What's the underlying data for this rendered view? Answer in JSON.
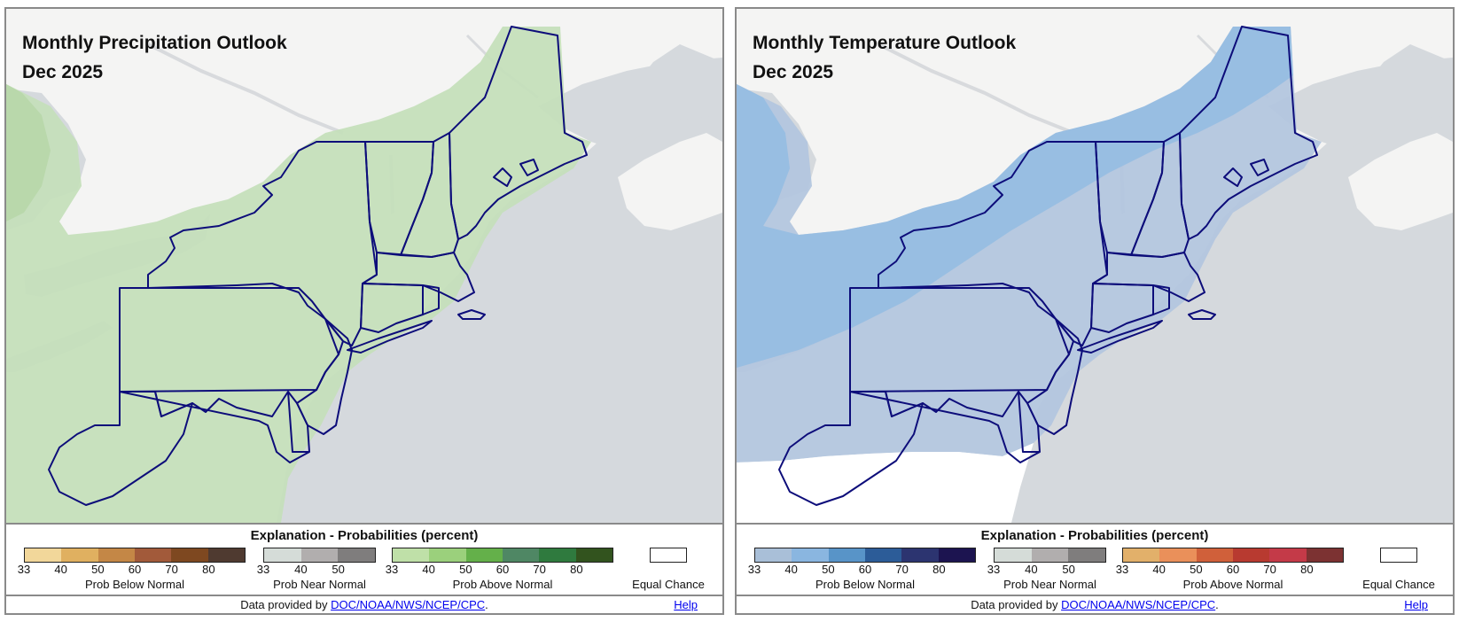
{
  "precip": {
    "title": "Monthly Precipitation Outlook",
    "period": "Dec 2025",
    "legend_title": "Explanation - Probabilities (percent)",
    "below": {
      "label": "Prob Below Normal",
      "ticks": [
        "33",
        "40",
        "50",
        "60",
        "70",
        "80"
      ],
      "colors": [
        "#f2d79a",
        "#e0b060",
        "#c48746",
        "#a25a3a",
        "#7e4820",
        "#4f3a30"
      ]
    },
    "near": {
      "label": "Prob Near Normal",
      "ticks": [
        "33",
        "40",
        "50"
      ],
      "colors": [
        "#d5dcd8",
        "#b1aeae",
        "#7f7d7d"
      ]
    },
    "above": {
      "label": "Prob Above Normal",
      "ticks": [
        "33",
        "40",
        "50",
        "60",
        "70",
        "80"
      ],
      "colors": [
        "#bfe0a8",
        "#9bd07c",
        "#64b04a",
        "#4f8764",
        "#2f7a3e",
        "#32531e"
      ]
    },
    "equal_chance": "Equal Chance",
    "credit_prefix": "Data provided by ",
    "credit_link": "DOC/NOAA/NWS/NCEP/CPC",
    "credit_suffix": ".",
    "help": "Help",
    "shade_color": "#c5dfba"
  },
  "temp": {
    "title": "Monthly Temperature Outlook",
    "period": "Dec 2025",
    "legend_title": "Explanation - Probabilities (percent)",
    "below": {
      "label": "Prob Below Normal",
      "ticks": [
        "33",
        "40",
        "50",
        "60",
        "70",
        "80"
      ],
      "colors": [
        "#a9bfd8",
        "#8ab6e0",
        "#5894c8",
        "#2c5c98",
        "#2c3470",
        "#1c1450"
      ]
    },
    "near": {
      "label": "Prob Near Normal",
      "ticks": [
        "33",
        "40",
        "50"
      ],
      "colors": [
        "#d5dcd8",
        "#b1aeae",
        "#7f7d7d"
      ]
    },
    "above": {
      "label": "Prob Above Normal",
      "ticks": [
        "33",
        "40",
        "50",
        "60",
        "70",
        "80"
      ],
      "colors": [
        "#e2b06a",
        "#ea905a",
        "#d0603a",
        "#b83a30",
        "#c43a48",
        "#7c3232"
      ]
    },
    "equal_chance": "Equal Chance",
    "credit_prefix": "Data provided by ",
    "credit_link": "DOC/NOAA/NWS/NCEP/CPC",
    "credit_suffix": ".",
    "help": "Help",
    "shade_33": "#b3c6de",
    "shade_40": "#95bde2"
  }
}
